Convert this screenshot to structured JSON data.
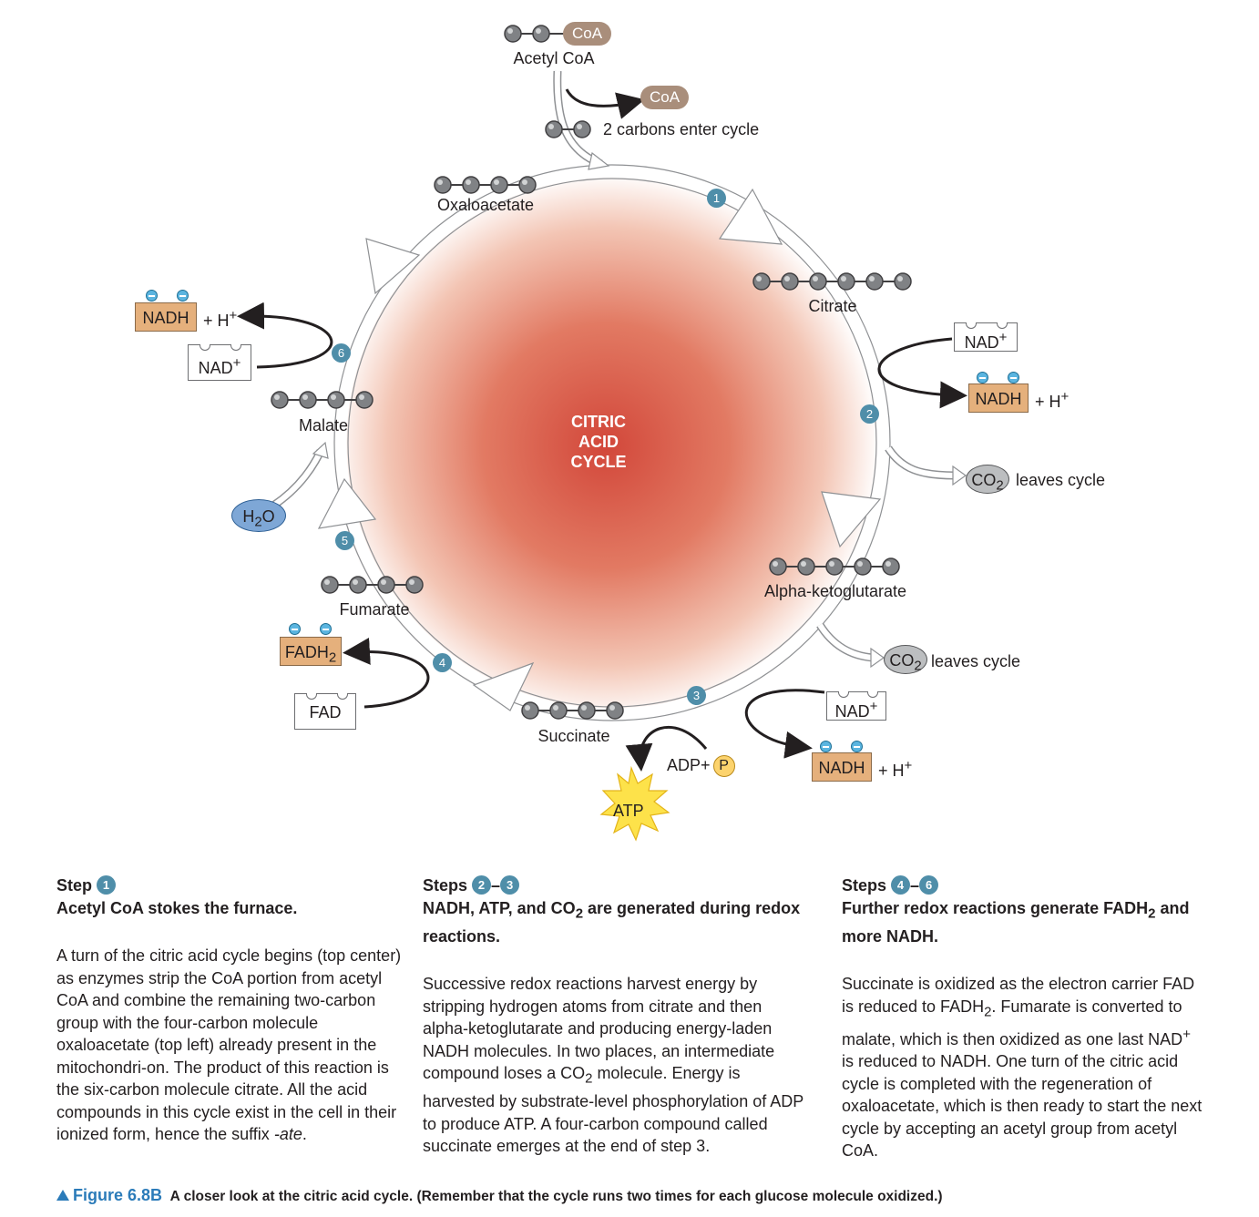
{
  "diagram": {
    "center_title": [
      "CITRIC",
      "ACID",
      "CYCLE"
    ],
    "acetyl_coa": {
      "coa": "CoA",
      "label": "Acetyl CoA"
    },
    "coa_released": "CoA",
    "carbons_enter": "2 carbons enter cycle",
    "compounds": {
      "oxaloacetate": "Oxaloacetate",
      "citrate": "Citrate",
      "alpha_ketoglutarate": "Alpha-ketoglutarate",
      "succinate": "Succinate",
      "fumarate": "Fumarate",
      "malate": "Malate"
    },
    "step_numbers": [
      "1",
      "2",
      "3",
      "4",
      "5",
      "6"
    ],
    "carriers": {
      "nad": "NAD",
      "nadh": "NADH",
      "plus_sign": "+",
      "hplus": "+ H",
      "superscript_plus": "+",
      "fad": "FAD",
      "fadh": "FADH",
      "fadh_sub": "2"
    },
    "co2": {
      "c": "CO",
      "sub": "2",
      "leaves": "leaves cycle"
    },
    "h2o": {
      "h": "H",
      "sub": "2",
      "o": "O"
    },
    "adp": "ADP+",
    "p": "P",
    "atp": "ATP"
  },
  "steps": [
    {
      "prefix": "Step",
      "nums": [
        "1"
      ],
      "title": "Acetyl CoA stokes the furnace.",
      "body": "A turn of the citric acid cycle begins (top center) as enzymes strip the CoA portion from acetyl CoA and combine the remaining two-carbon group with the four-carbon molecule oxaloacetate (top left) already present in the mitochondri-on. The product of this reaction is the six-carbon molecule citrate. All the acid compounds in this cycle exist in the cell in their ionized form, hence the suffix",
      "body_italic": "-ate",
      "body_end": "."
    },
    {
      "prefix": "Steps",
      "nums": [
        "2",
        "3"
      ],
      "dash": "–",
      "title_a": "NADH, ATP, and CO",
      "title_sub": "2",
      "title_b": " are generated during redox reactions.",
      "body_a": "Successive redox reactions harvest energy by stripping hydrogen atoms from citrate and then alpha-ketoglutarate and producing energy-laden NADH molecules. In two places, an intermediate compound loses a CO",
      "body_sub": "2",
      "body_b": " molecule. Energy is harvested by substrate-level phosphorylation of ADP to produce ATP. A four-carbon compound called succinate emerges at the end of step 3."
    },
    {
      "prefix": "Steps",
      "nums": [
        "4",
        "6"
      ],
      "dash": "–",
      "title_a": "Further redox reactions generate FADH",
      "title_sub": "2",
      "title_b": " and more NADH.",
      "body_a": "Succinate is oxidized as the electron carrier FAD is reduced to FADH",
      "body_sub": "2",
      "body_b": ". Fumarate is converted to malate, which is then oxidized as one last NAD",
      "body_sup": "+",
      "body_c": " is reduced to NADH. One turn of the citric acid cycle is completed with the regeneration of oxaloacetate, which is then ready to start the next cycle by accepting an acetyl group from acetyl CoA."
    }
  ],
  "caption": {
    "figure": "Figure 6.8B",
    "text": "A closer look at the citric acid cycle. (Remember that the cycle runs two times for each glucose molecule oxidized.)"
  },
  "colors": {
    "center_red": "#d2473a",
    "step_circle": "#4f8ea9",
    "carrier_filled": "#e5b07c",
    "coa": "#a98e7b",
    "figure_blue": "#2b7bb9",
    "atp_star": "#fde24a"
  }
}
